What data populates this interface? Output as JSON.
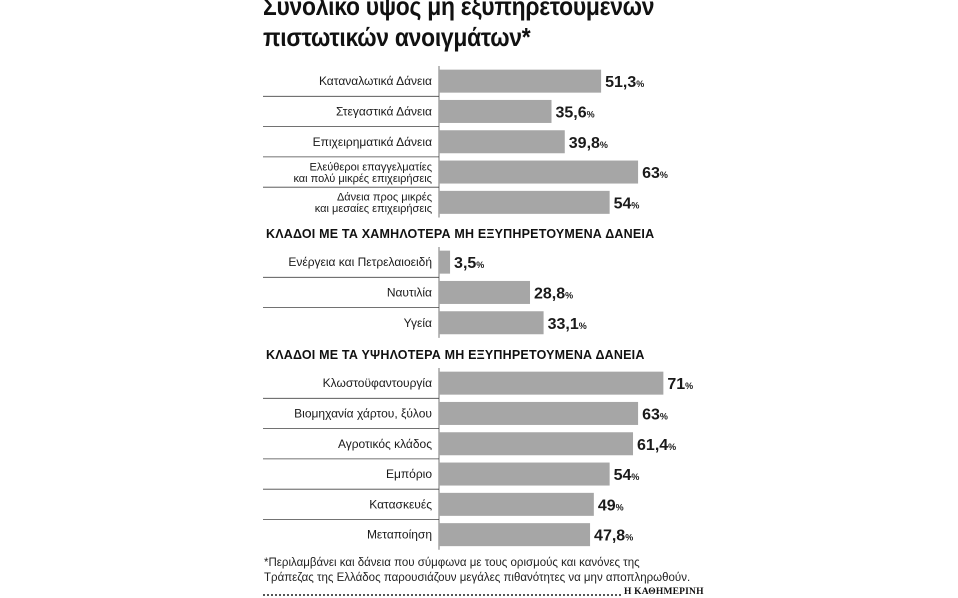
{
  "title_lines": [
    "Συνολικό ύψος μη εξυπηρετούμενων",
    "πιστωτικών ανοιγμάτων*"
  ],
  "section_headings": [
    "ΚΛΑΔΟΙ ΜΕ ΤΑ ΧΑΜΗΛΟΤΕΡΑ ΜΗ ΕΞΥΠΗΡΕΤΟΥΜΕΝΑ ΔΑΝΕΙΑ",
    "ΚΛΑΔΟΙ ΜΕ ΤΑ ΥΨΗΛΟΤΕΡΑ ΜΗ ΕΞΥΠΗΡΕΤΟΥΜΕΝΑ ΔΑΝΕΙΑ"
  ],
  "footnote_lines": [
    "*Περιλαμβάνει και δάνεια που σύμφωνα με τους ορισμούς και κανόνες της",
    "Τράπεζας της Ελλάδος παρουσιάζουν μεγάλες πιθανότητες να μην αποπληρωθούν."
  ],
  "publisher": "Η ΚΑΘΗΜΕΡΙΝΗ",
  "colors": {
    "bar": "#a6a6a6",
    "separator": "#444444",
    "text": "#1a1a1a"
  },
  "chart_data": {
    "type": "bar",
    "orientation": "horizontal",
    "unit": "%",
    "title": "Συνολικό ύψος μη εξυπηρετούμενων πιστωτικών ανοιγμάτων*",
    "xlim": [
      0,
      100
    ],
    "grid": false,
    "groups": [
      {
        "heading": "",
        "bars": [
          {
            "label": [
              "Καταναλωτικά Δάνεια"
            ],
            "value": 51.3,
            "value_label": "51,3"
          },
          {
            "label": [
              "Στεγαστικά Δάνεια"
            ],
            "value": 35.6,
            "value_label": "35,6"
          },
          {
            "label": [
              "Επιχειρηματικά Δάνεια"
            ],
            "value": 39.8,
            "value_label": "39,8"
          },
          {
            "label": [
              "Ελεύθεροι επαγγελματίες",
              "και πολύ μικρές επιχειρήσεις"
            ],
            "value": 63,
            "value_label": "63"
          },
          {
            "label": [
              "Δάνεια προς μικρές",
              "και μεσαίες επιχειρήσεις"
            ],
            "value": 54,
            "value_label": "54"
          }
        ]
      },
      {
        "heading": "ΚΛΑΔΟΙ ΜΕ ΤΑ ΧΑΜΗΛΟΤΕΡΑ ΜΗ ΕΞΥΠΗΡΕΤΟΥΜΕΝΑ ΔΑΝΕΙΑ",
        "bars": [
          {
            "label": [
              "Ενέργεια και Πετρελαιοειδή"
            ],
            "value": 3.5,
            "value_label": "3,5"
          },
          {
            "label": [
              "Ναυτιλία"
            ],
            "value": 28.8,
            "value_label": "28,8"
          },
          {
            "label": [
              "Υγεία"
            ],
            "value": 33.1,
            "value_label": "33,1"
          }
        ]
      },
      {
        "heading": "ΚΛΑΔΟΙ ΜΕ ΤΑ ΥΨΗΛΟΤΕΡΑ ΜΗ ΕΞΥΠΗΡΕΤΟΥΜΕΝΑ ΔΑΝΕΙΑ",
        "bars": [
          {
            "label": [
              "Κλωστοϋφαντουργία"
            ],
            "value": 71,
            "value_label": "71"
          },
          {
            "label": [
              "Βιομηχανία χάρτου, ξύλου"
            ],
            "value": 63,
            "value_label": "63"
          },
          {
            "label": [
              "Αγροτικός κλάδος"
            ],
            "value": 61.4,
            "value_label": "61,4"
          },
          {
            "label": [
              "Εμπόριο"
            ],
            "value": 54,
            "value_label": "54"
          },
          {
            "label": [
              "Κατασκευές"
            ],
            "value": 49,
            "value_label": "49"
          },
          {
            "label": [
              "Μεταποίηση"
            ],
            "value": 47.8,
            "value_label": "47,8"
          }
        ]
      }
    ]
  }
}
